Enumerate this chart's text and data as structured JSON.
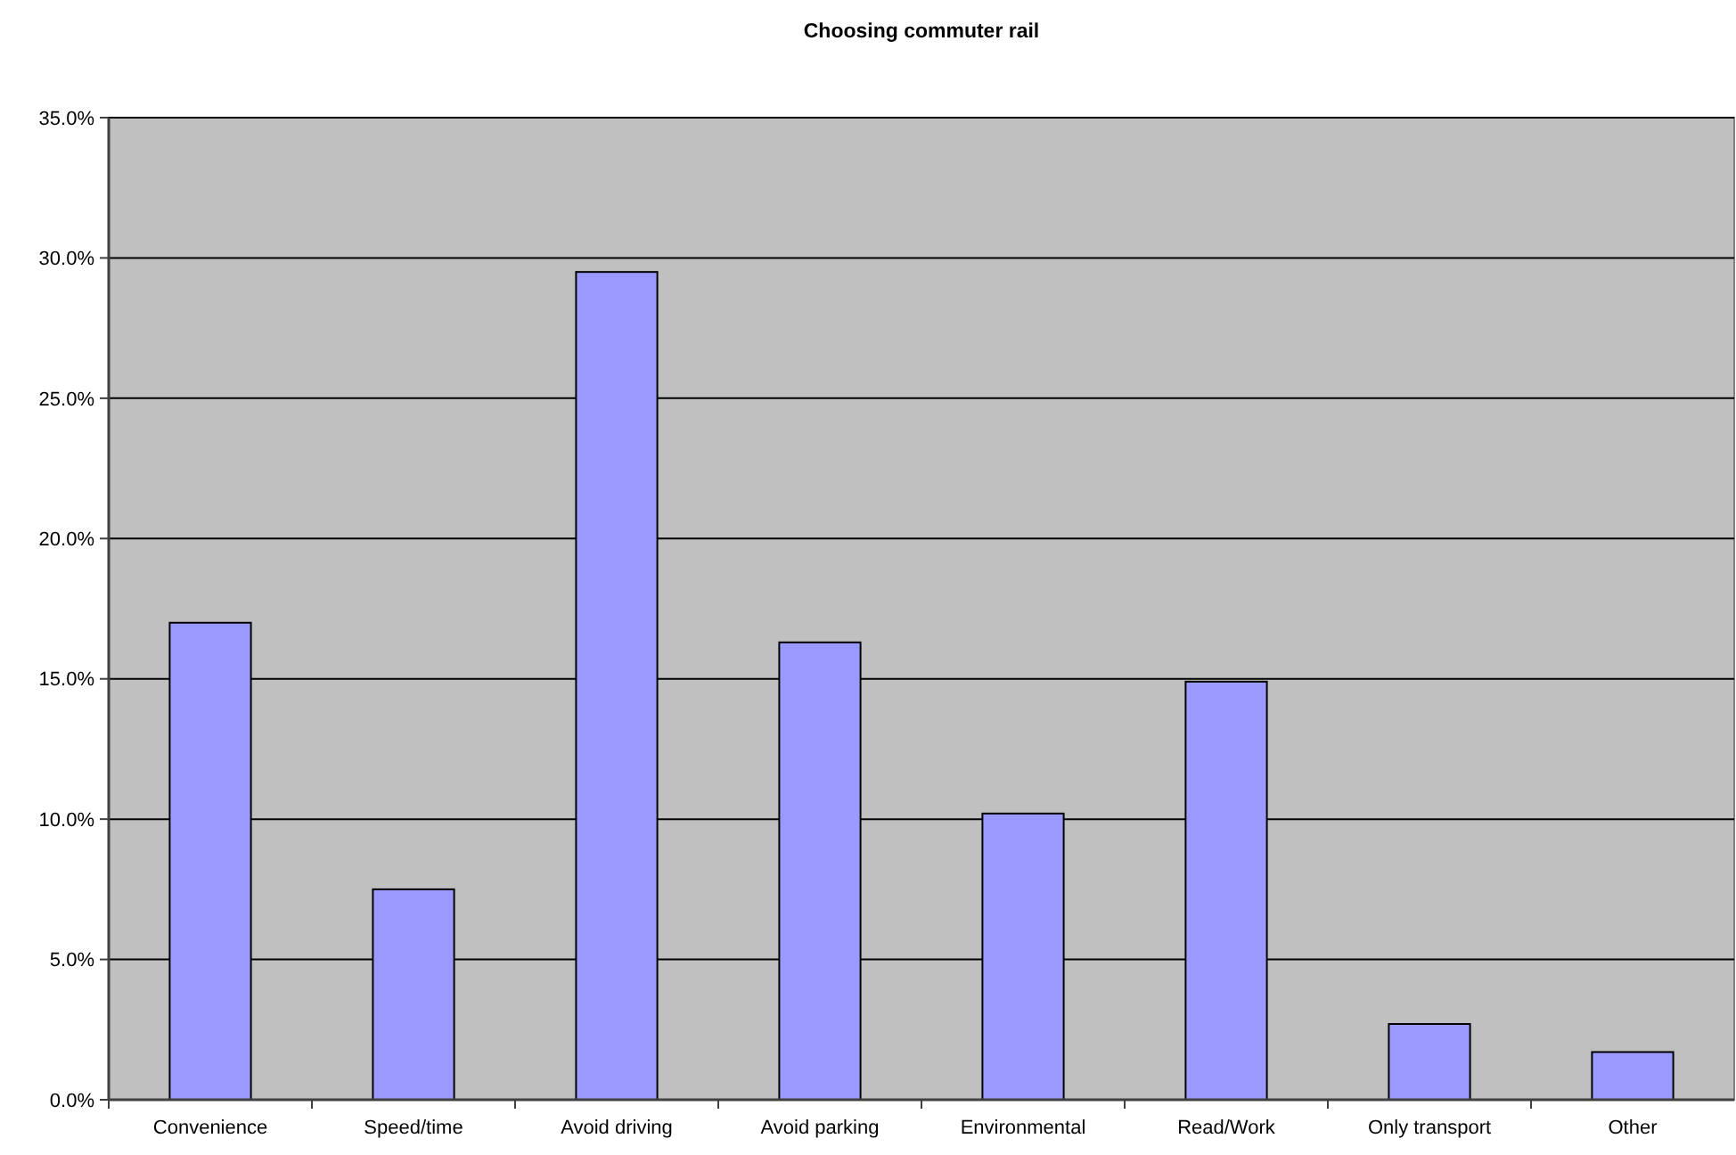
{
  "chart_data": {
    "type": "bar",
    "title": "Choosing commuter rail",
    "categories": [
      "Convenience",
      "Speed/time",
      "Avoid driving",
      "Avoid parking",
      "Environmental",
      "Read/Work",
      "Only transport",
      "Other"
    ],
    "values": [
      17.0,
      7.5,
      29.5,
      16.3,
      10.2,
      14.9,
      2.7,
      1.7
    ],
    "color": "#9999ff",
    "ylim": [
      0,
      35
    ],
    "yticks": [
      {
        "value": 0,
        "label": "0.0%"
      },
      {
        "value": 5,
        "label": "5.0%"
      },
      {
        "value": 10,
        "label": "10.0%"
      },
      {
        "value": 15,
        "label": "15.0%"
      },
      {
        "value": 20,
        "label": "20.0%"
      },
      {
        "value": 25,
        "label": "25.0%"
      },
      {
        "value": 30,
        "label": "30.0%"
      },
      {
        "value": 35,
        "label": "35.0%"
      }
    ],
    "grid": "y"
  }
}
